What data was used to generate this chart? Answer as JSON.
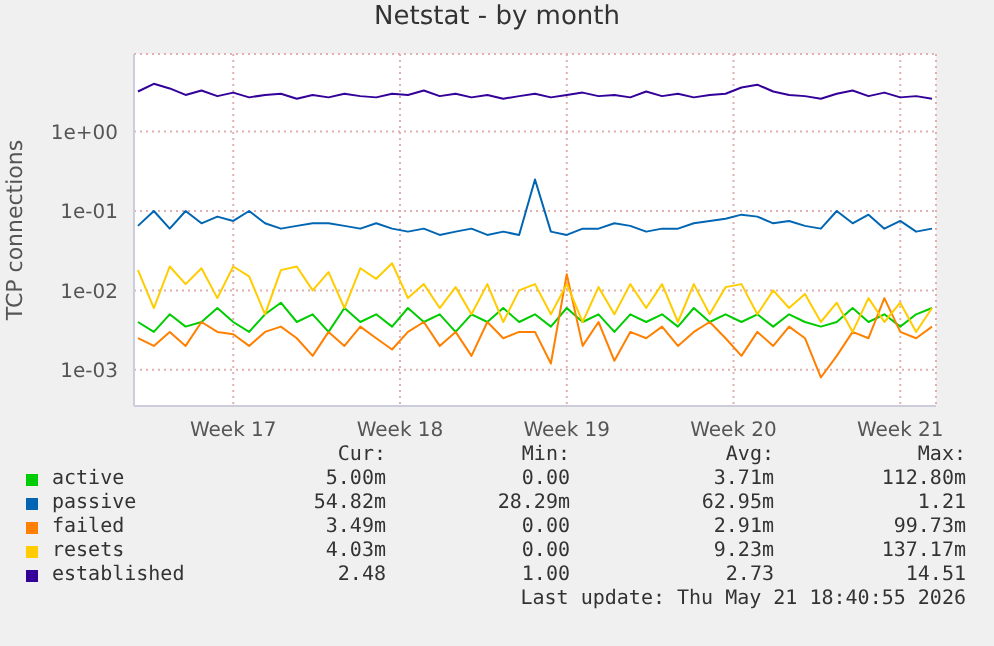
{
  "chart_data": {
    "type": "line",
    "title": "Netstat - by month",
    "ylabel": "TCP connections",
    "log": "y",
    "grid": true,
    "legend": "bottom",
    "marker": "none",
    "line_style": "solid",
    "x": [
      "2026-04-19T12:00",
      "2026-04-20T04:00",
      "2026-04-20T20:00",
      "2026-04-21T12:00",
      "2026-04-22T04:00",
      "2026-04-22T20:00",
      "2026-04-23T12:00",
      "2026-04-24T04:00",
      "2026-04-24T20:00",
      "2026-04-25T12:00",
      "2026-04-26T04:00",
      "2026-04-26T20:00",
      "2026-04-27T12:00",
      "2026-04-28T04:00",
      "2026-04-28T20:00",
      "2026-04-29T12:00",
      "2026-04-30T04:00",
      "2026-04-30T20:00",
      "2026-05-01T12:00",
      "2026-05-02T04:00",
      "2026-05-02T20:00",
      "2026-05-03T12:00",
      "2026-05-04T04:00",
      "2026-05-04T20:00",
      "2026-05-05T12:00",
      "2026-05-06T04:00",
      "2026-05-06T20:00",
      "2026-05-07T12:00",
      "2026-05-08T04:00",
      "2026-05-08T20:00",
      "2026-05-09T12:00",
      "2026-05-10T04:00",
      "2026-05-10T20:00",
      "2026-05-11T12:00",
      "2026-05-12T04:00",
      "2026-05-12T20:00",
      "2026-05-13T12:00",
      "2026-05-14T04:00",
      "2026-05-14T20:00",
      "2026-05-15T12:00",
      "2026-05-16T04:00",
      "2026-05-16T20:00",
      "2026-05-17T12:00",
      "2026-05-18T04:00",
      "2026-05-18T20:00",
      "2026-05-19T12:00",
      "2026-05-20T04:00",
      "2026-05-20T20:00",
      "2026-05-21T12:00",
      "2026-05-22T04:00",
      "2026-05-22T20:00"
    ],
    "xlim": [
      "2026-04-19T08:00",
      "2026-05-23T00:00"
    ],
    "xticks": [
      {
        "value": "2026-04-23T12:00",
        "label": "Week 17"
      },
      {
        "value": "2026-04-30T12:00",
        "label": "Week 18"
      },
      {
        "value": "2026-05-07T12:00",
        "label": "Week 19"
      },
      {
        "value": "2026-05-14T12:00",
        "label": "Week 20"
      },
      {
        "value": "2026-05-21T12:00",
        "label": "Week 21"
      }
    ],
    "ylim": [
      0.00035,
      9.5
    ],
    "yticks": [
      {
        "value": 0.001,
        "label": "1e-03"
      },
      {
        "value": 0.01,
        "label": "1e-02"
      },
      {
        "value": 0.1,
        "label": "1e-01"
      },
      {
        "value": 1,
        "label": "1e+00"
      }
    ],
    "series": [
      {
        "name": "active",
        "color": "#00cc00",
        "values": [
          0.004,
          0.003,
          0.005,
          0.0035,
          0.004,
          0.006,
          0.004,
          0.003,
          0.005,
          0.007,
          0.004,
          0.005,
          0.003,
          0.006,
          0.004,
          0.005,
          0.0035,
          0.006,
          0.004,
          0.005,
          0.003,
          0.005,
          0.004,
          0.006,
          0.004,
          0.005,
          0.0035,
          0.006,
          0.004,
          0.005,
          0.003,
          0.005,
          0.004,
          0.005,
          0.0035,
          0.006,
          0.004,
          0.005,
          0.004,
          0.005,
          0.0035,
          0.005,
          0.004,
          0.0035,
          0.004,
          0.006,
          0.004,
          0.005,
          0.0035,
          0.005,
          0.006
        ]
      },
      {
        "name": "passive",
        "color": "#0066b3",
        "values": [
          0.065,
          0.1,
          0.06,
          0.1,
          0.07,
          0.085,
          0.075,
          0.1,
          0.07,
          0.06,
          0.065,
          0.07,
          0.07,
          0.065,
          0.06,
          0.07,
          0.06,
          0.055,
          0.06,
          0.05,
          0.055,
          0.06,
          0.05,
          0.055,
          0.05,
          0.25,
          0.055,
          0.05,
          0.06,
          0.06,
          0.07,
          0.065,
          0.055,
          0.06,
          0.06,
          0.07,
          0.075,
          0.08,
          0.09,
          0.085,
          0.07,
          0.075,
          0.065,
          0.06,
          0.1,
          0.07,
          0.09,
          0.06,
          0.075,
          0.055,
          0.06
        ]
      },
      {
        "name": "failed",
        "color": "#ff8000",
        "values": [
          0.0025,
          0.002,
          0.003,
          0.002,
          0.004,
          0.003,
          0.0028,
          0.002,
          0.003,
          0.0035,
          0.0025,
          0.0015,
          0.003,
          0.002,
          0.0035,
          0.0025,
          0.0018,
          0.003,
          0.004,
          0.002,
          0.003,
          0.0015,
          0.004,
          0.0025,
          0.003,
          0.003,
          0.0012,
          0.016,
          0.002,
          0.004,
          0.0013,
          0.003,
          0.0025,
          0.0035,
          0.002,
          0.003,
          0.004,
          0.0025,
          0.0015,
          0.003,
          0.002,
          0.0035,
          0.0025,
          0.0008,
          0.0015,
          0.003,
          0.0025,
          0.008,
          0.003,
          0.0025,
          0.0035
        ]
      },
      {
        "name": "resets",
        "color": "#ffcc00",
        "values": [
          0.018,
          0.006,
          0.02,
          0.012,
          0.019,
          0.008,
          0.02,
          0.015,
          0.005,
          0.018,
          0.02,
          0.01,
          0.017,
          0.006,
          0.019,
          0.014,
          0.022,
          0.008,
          0.012,
          0.006,
          0.011,
          0.005,
          0.012,
          0.004,
          0.01,
          0.012,
          0.005,
          0.012,
          0.004,
          0.011,
          0.005,
          0.012,
          0.006,
          0.012,
          0.004,
          0.012,
          0.005,
          0.011,
          0.012,
          0.005,
          0.01,
          0.006,
          0.009,
          0.004,
          0.007,
          0.003,
          0.008,
          0.004,
          0.007,
          0.003,
          0.006
        ]
      },
      {
        "name": "established",
        "color": "#330099",
        "values": [
          3.2,
          4.0,
          3.5,
          2.9,
          3.3,
          2.8,
          3.1,
          2.7,
          2.9,
          3.0,
          2.6,
          2.9,
          2.7,
          3.0,
          2.8,
          2.7,
          3.0,
          2.9,
          3.3,
          2.8,
          3.0,
          2.7,
          2.9,
          2.6,
          2.8,
          3.0,
          2.7,
          2.9,
          3.1,
          2.8,
          2.9,
          2.7,
          3.2,
          2.8,
          3.0,
          2.7,
          2.9,
          3.0,
          3.6,
          3.9,
          3.2,
          2.9,
          2.8,
          2.6,
          3.0,
          3.3,
          2.8,
          3.1,
          2.7,
          2.8,
          2.6
        ]
      }
    ],
    "annotations": [
      "Cur:",
      "Min:",
      "Avg:",
      "Max:",
      "5.00m",
      "0.00",
      "3.71m",
      "112.80m",
      "54.82m",
      "28.29m",
      "62.95m",
      "1.21",
      "3.49m",
      "0.00",
      "2.91m",
      "99.73m",
      "4.03m",
      "0.00",
      "9.23m",
      "137.17m",
      "2.48",
      "1.00",
      "2.73",
      "14.51",
      "Last update: Thu May 21 18:40:55 2026"
    ]
  }
}
